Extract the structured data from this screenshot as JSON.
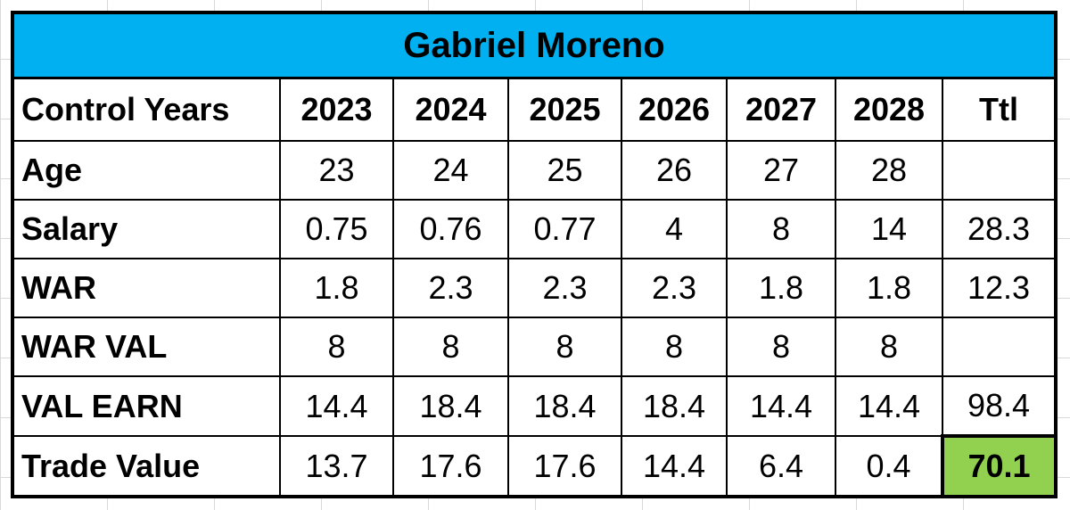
{
  "title": "Gabriel Moreno",
  "table": {
    "header": [
      "Control Years",
      2023,
      2024,
      2025,
      2026,
      2027,
      2028,
      "Ttl"
    ],
    "rows": [
      [
        "Age",
        23,
        24,
        25,
        26,
        27,
        28,
        null
      ],
      [
        "Salary",
        0.75,
        0.76,
        0.77,
        4,
        8,
        14,
        28.3
      ],
      [
        "WAR",
        1.8,
        2.3,
        2.3,
        2.3,
        1.8,
        1.8,
        12.3
      ],
      [
        "WAR VAL",
        8,
        8,
        8,
        8,
        8,
        8,
        null
      ],
      [
        "VAL EARN",
        14.4,
        18.4,
        18.4,
        18.4,
        14.4,
        14.4,
        98.4
      ],
      [
        "Trade Value",
        13.7,
        17.6,
        17.6,
        14.4,
        6.4,
        0.4,
        70.1
      ]
    ]
  }
}
